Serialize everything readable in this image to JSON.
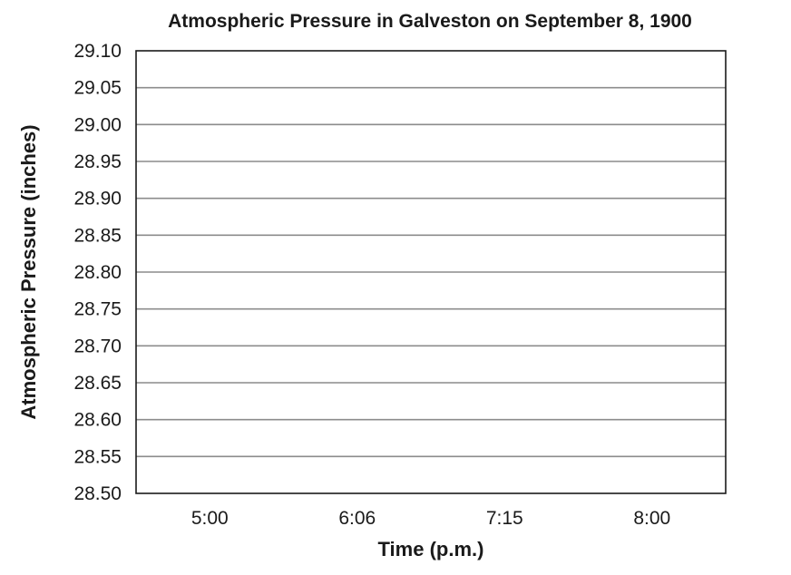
{
  "chart_data": {
    "type": "line",
    "title": "Atmospheric Pressure in Galveston on September 8, 1900",
    "xlabel": "Time (p.m.)",
    "ylabel": "Atmospheric Pressure (inches)",
    "categories": [
      "5:00",
      "6:06",
      "7:15",
      "8:00"
    ],
    "yticks": [
      "28.50",
      "28.55",
      "28.60",
      "28.65",
      "28.70",
      "28.75",
      "28.80",
      "28.85",
      "28.90",
      "28.95",
      "29.00",
      "29.05",
      "29.10"
    ],
    "ylim": [
      28.5,
      29.1
    ],
    "grid": true,
    "series": []
  }
}
